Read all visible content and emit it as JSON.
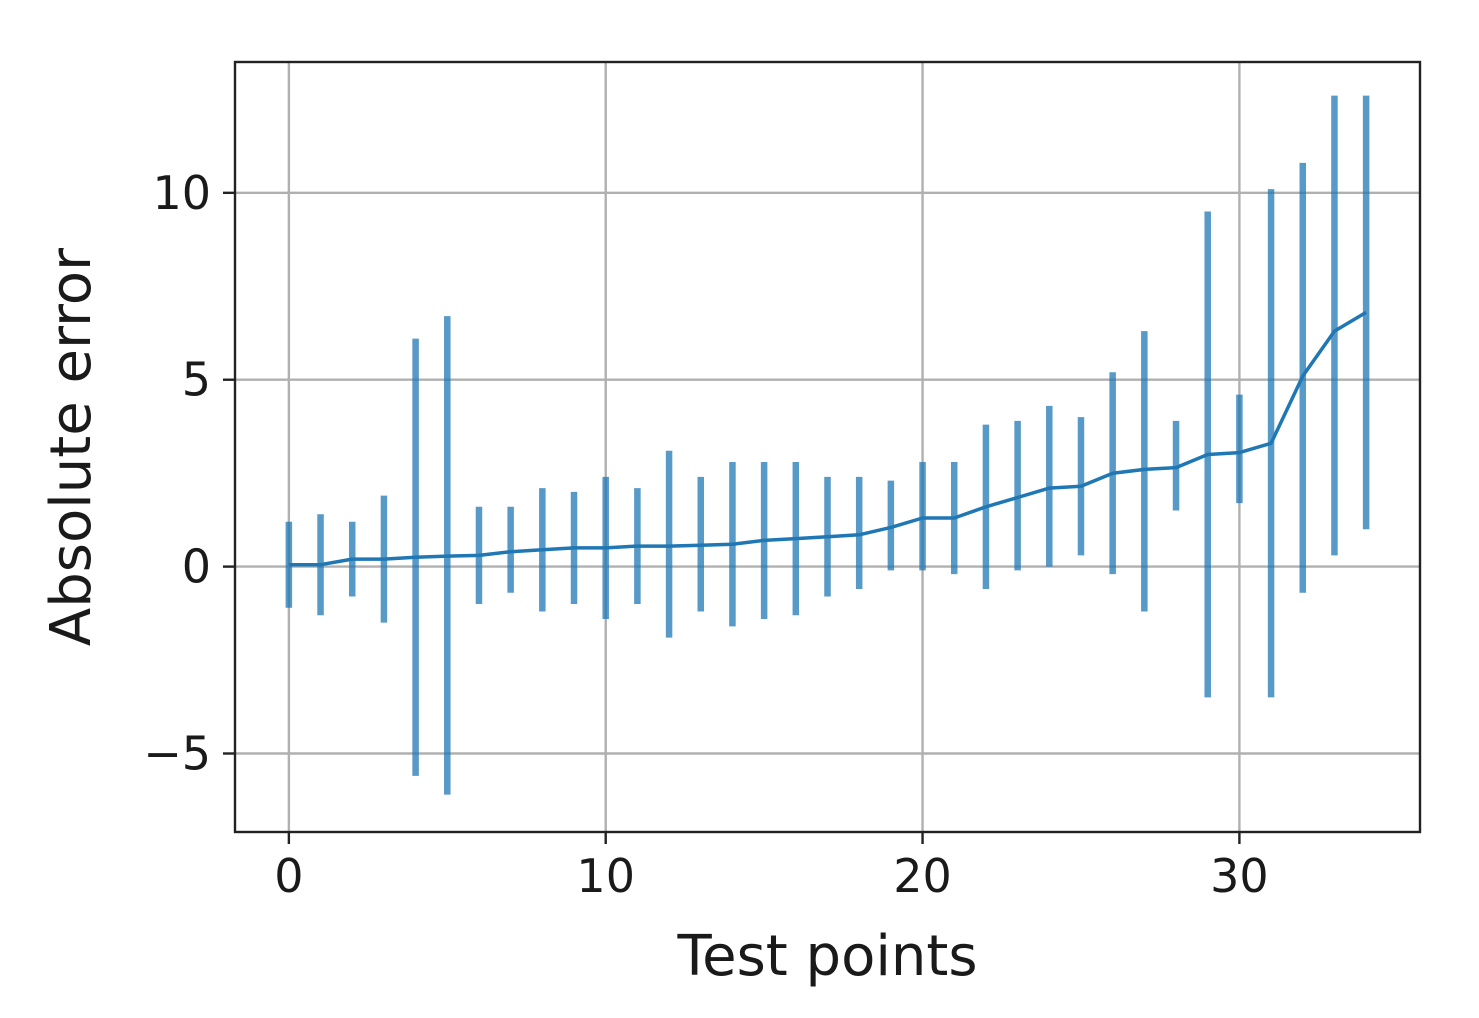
{
  "chart_data": {
    "type": "line",
    "title": "",
    "xlabel": "Test points",
    "ylabel": "Absolute error",
    "xlim": [
      -1.7,
      35.7
    ],
    "ylim": [
      -7.1,
      13.5
    ],
    "xticks": [
      0,
      10,
      20,
      30
    ],
    "yticks": [
      -5,
      0,
      5,
      10
    ],
    "xtick_labels": [
      "0",
      "10",
      "20",
      "30"
    ],
    "ytick_labels": [
      "−5",
      "0",
      "5",
      "10"
    ],
    "grid": true,
    "color": "#1f77b4",
    "series": [
      {
        "x": [
          0,
          1,
          2,
          3,
          4,
          5,
          6,
          7,
          8,
          9,
          10,
          11,
          12,
          13,
          14,
          15,
          16,
          17,
          18,
          19,
          20,
          21,
          22,
          23,
          24,
          25,
          26,
          27,
          28,
          29,
          30,
          31,
          32,
          33,
          34
        ],
        "y": [
          0.05,
          0.05,
          0.2,
          0.2,
          0.25,
          0.28,
          0.3,
          0.4,
          0.45,
          0.5,
          0.5,
          0.55,
          0.55,
          0.57,
          0.6,
          0.7,
          0.75,
          0.8,
          0.85,
          1.05,
          1.3,
          1.3,
          1.6,
          1.85,
          2.1,
          2.15,
          2.5,
          2.6,
          2.65,
          3.0,
          3.05,
          3.3,
          5.1,
          6.3,
          6.8
        ],
        "error_low": [
          -1.1,
          -1.3,
          -0.8,
          -1.5,
          -5.6,
          -6.1,
          -1.0,
          -0.7,
          -1.2,
          -1.0,
          -1.4,
          -1.0,
          -1.9,
          -1.2,
          -1.6,
          -1.4,
          -1.3,
          -0.8,
          -0.6,
          -0.1,
          -0.1,
          -0.2,
          -0.6,
          -0.1,
          0.0,
          0.3,
          -0.2,
          -1.2,
          1.5,
          -3.5,
          1.7,
          -3.5,
          -0.7,
          0.3,
          1.0
        ],
        "error_high": [
          1.2,
          1.4,
          1.2,
          1.9,
          6.1,
          6.7,
          1.6,
          1.6,
          2.1,
          2.0,
          2.4,
          2.1,
          3.1,
          2.4,
          2.8,
          2.8,
          2.8,
          2.4,
          2.4,
          2.3,
          2.8,
          2.8,
          3.8,
          3.9,
          4.3,
          4.0,
          5.2,
          6.3,
          3.9,
          9.5,
          4.6,
          10.1,
          10.8,
          12.6,
          12.6
        ]
      }
    ]
  }
}
